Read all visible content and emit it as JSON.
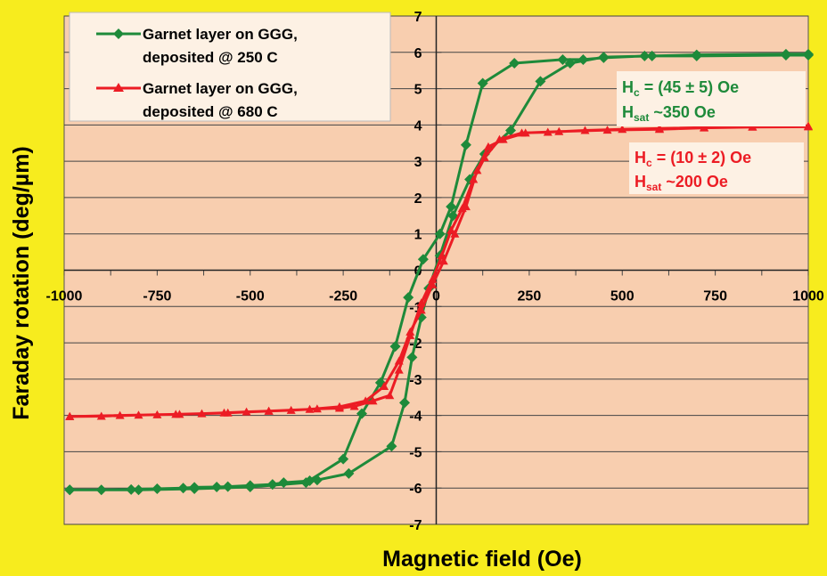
{
  "chart_data": {
    "type": "line",
    "xlabel": "Magnetic field (Oe)",
    "ylabel": "Faraday rotation (deg/µm)",
    "xlim": [
      -1000,
      1000
    ],
    "ylim": [
      -7,
      7
    ],
    "x_ticks": [
      -1000,
      -750,
      -500,
      -250,
      0,
      250,
      500,
      750,
      1000
    ],
    "y_ticks": [
      -7,
      -6,
      -5,
      -4,
      -3,
      -2,
      -1,
      0,
      1,
      2,
      3,
      4,
      5,
      6,
      7
    ],
    "grid": "horizontal",
    "legend_position": "top-left",
    "colors": {
      "page_background": "#f7ec1e",
      "plot_background": "#f8ceaf",
      "legend_background": "#fdf1e4"
    },
    "series": [
      {
        "name": "Garnet layer on GGG, deposited @ 250 C",
        "color": "#1e8a3a",
        "marker": "diamond",
        "points": [
          [
            -985,
            -6.05
          ],
          [
            -900,
            -6.05
          ],
          [
            -820,
            -6.04
          ],
          [
            -750,
            -6.02
          ],
          [
            -680,
            -6.0
          ],
          [
            -650,
            -5.98
          ],
          [
            -590,
            -5.97
          ],
          [
            -560,
            -5.96
          ],
          [
            -500,
            -5.93
          ],
          [
            -440,
            -5.9
          ],
          [
            -410,
            -5.85
          ],
          [
            -340,
            -5.8
          ],
          [
            -320,
            -5.78
          ],
          [
            -235,
            -5.6
          ],
          [
            -120,
            -4.85
          ],
          [
            -85,
            -3.65
          ],
          [
            -65,
            -2.4
          ],
          [
            -40,
            -1.3
          ],
          [
            -20,
            -0.5
          ],
          [
            10,
            0.4
          ],
          [
            45,
            1.5
          ],
          [
            90,
            2.5
          ],
          [
            130,
            3.2
          ],
          [
            200,
            3.85
          ],
          [
            280,
            5.2
          ],
          [
            360,
            5.7
          ],
          [
            450,
            5.87
          ],
          [
            580,
            5.9
          ],
          [
            700,
            5.93
          ],
          [
            940,
            5.95
          ],
          [
            1000,
            5.95
          ],
          [
            1000,
            5.92
          ],
          [
            940,
            5.92
          ],
          [
            700,
            5.9
          ],
          [
            560,
            5.9
          ],
          [
            450,
            5.85
          ],
          [
            395,
            5.8
          ],
          [
            340,
            5.8
          ],
          [
            210,
            5.7
          ],
          [
            125,
            5.15
          ],
          [
            80,
            3.45
          ],
          [
            40,
            1.75
          ],
          [
            10,
            1.0
          ],
          [
            -35,
            0.3
          ],
          [
            -75,
            -0.75
          ],
          [
            -110,
            -2.1
          ],
          [
            -150,
            -3.1
          ],
          [
            -200,
            -3.95
          ],
          [
            -250,
            -5.2
          ],
          [
            -350,
            -5.85
          ],
          [
            -500,
            -5.97
          ],
          [
            -650,
            -6.02
          ],
          [
            -800,
            -6.05
          ],
          [
            -985,
            -6.05
          ]
        ]
      },
      {
        "name": "Garnet layer on GGG, deposited @ 680 C",
        "color": "#ec1c24",
        "marker": "triangle",
        "points": [
          [
            -985,
            -4.03
          ],
          [
            -900,
            -4.02
          ],
          [
            -800,
            -3.99
          ],
          [
            -750,
            -3.98
          ],
          [
            -690,
            -3.97
          ],
          [
            -630,
            -3.95
          ],
          [
            -570,
            -3.93
          ],
          [
            -510,
            -3.9
          ],
          [
            -450,
            -3.88
          ],
          [
            -390,
            -3.86
          ],
          [
            -320,
            -3.82
          ],
          [
            -260,
            -3.8
          ],
          [
            -220,
            -3.75
          ],
          [
            -170,
            -3.6
          ],
          [
            -125,
            -3.45
          ],
          [
            -100,
            -2.75
          ],
          [
            -70,
            -1.8
          ],
          [
            -40,
            -0.9
          ],
          [
            -10,
            -0.25
          ],
          [
            15,
            0.4
          ],
          [
            40,
            1.1
          ],
          [
            70,
            1.7
          ],
          [
            100,
            2.5
          ],
          [
            130,
            3.1
          ],
          [
            170,
            3.6
          ],
          [
            230,
            3.78
          ],
          [
            300,
            3.8
          ],
          [
            400,
            3.85
          ],
          [
            500,
            3.88
          ],
          [
            600,
            3.9
          ],
          [
            720,
            3.93
          ],
          [
            850,
            3.95
          ],
          [
            1000,
            3.97
          ],
          [
            1000,
            3.95
          ],
          [
            850,
            3.94
          ],
          [
            720,
            3.92
          ],
          [
            600,
            3.88
          ],
          [
            460,
            3.86
          ],
          [
            330,
            3.82
          ],
          [
            240,
            3.78
          ],
          [
            180,
            3.6
          ],
          [
            140,
            3.4
          ],
          [
            110,
            2.75
          ],
          [
            80,
            1.75
          ],
          [
            50,
            1.0
          ],
          [
            20,
            0.25
          ],
          [
            -10,
            -0.4
          ],
          [
            -40,
            -1.1
          ],
          [
            -70,
            -1.7
          ],
          [
            -100,
            -2.5
          ],
          [
            -140,
            -3.2
          ],
          [
            -190,
            -3.6
          ],
          [
            -260,
            -3.76
          ],
          [
            -340,
            -3.83
          ],
          [
            -450,
            -3.88
          ],
          [
            -560,
            -3.93
          ],
          [
            -700,
            -3.97
          ],
          [
            -850,
            -4.0
          ],
          [
            -985,
            -4.03
          ]
        ]
      }
    ],
    "legend": [
      {
        "line1": "Garnet layer on GGG,",
        "line2": "deposited @ 250 C"
      },
      {
        "line1": "Garnet layer on GGG,",
        "line2": "deposited @ 680 C"
      }
    ],
    "annotations": [
      {
        "hc_prefix": "H",
        "hc_sub": "c",
        "hc_value": " = (45 ± 5) Oe",
        "hsat_prefix": "H",
        "hsat_sub": "sat",
        "hsat_value": " ~350 Oe",
        "color": "#1e8a3a"
      },
      {
        "hc_prefix": "H",
        "hc_sub": "c",
        "hc_value": " = (10 ± 2) Oe",
        "hsat_prefix": "H",
        "hsat_sub": "sat",
        "hsat_value": " ~200 Oe",
        "color": "#ec1c24"
      }
    ]
  }
}
